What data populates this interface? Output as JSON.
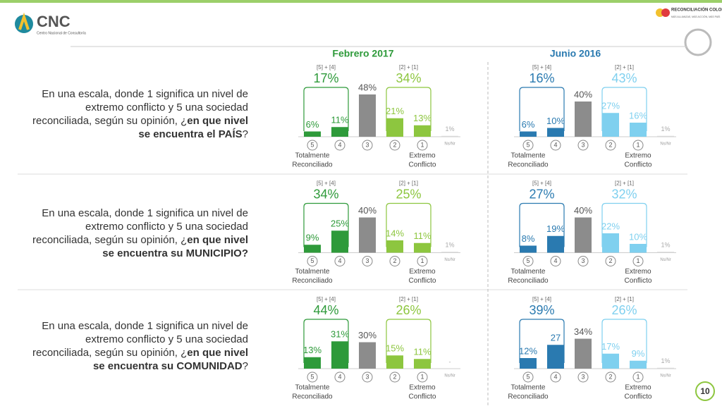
{
  "logo": {
    "name": "CNC",
    "subtitle": "Centro Nacional de Consultoría"
  },
  "partner": {
    "name": "RECONCILIACIÓN COLOMBIA",
    "tagline": "MÁS ALLIANZAS, MÁS ACCIÓN, MÁS PAÍS"
  },
  "headers": [
    "Febrero 2017",
    "Junio 2016"
  ],
  "questions": [
    [
      {
        "text": "En una escala, donde 1 significa un nivel de extremo conflicto y 5 una sociedad reconciliada, según su opinión, ¿"
      },
      {
        "text": "en que nivel se encuentra el PAÍS",
        "bold": true
      },
      {
        "text": "?"
      }
    ],
    [
      {
        "text": "En una escala, donde 1 significa un nivel de extremo conflicto y 5 una sociedad reconciliada, según su opinión, ¿"
      },
      {
        "text": "en que nivel se encuentra su MUNICIPIO?",
        "bold": true
      }
    ],
    [
      {
        "text": "En una escala, donde 1 significa un nivel de extremo conflicto y 5 una sociedad reconciliada, según su opinión, ¿"
      },
      {
        "text": "en que nivel se encuentra su COMUNIDAD",
        "bold": true
      },
      {
        "text": "?"
      }
    ]
  ],
  "page_number": "10",
  "chart_data": [
    {
      "type": "bar",
      "categories": [
        "5",
        "4",
        "3",
        "2",
        "1",
        "Ns/Nr"
      ],
      "values": [
        6,
        11,
        48,
        21,
        13,
        1
      ],
      "value_labels": [
        "6%",
        "11%",
        "48%",
        "21%",
        "13%",
        "1%"
      ],
      "colors": [
        "#2e9a3a",
        "#2e9a3a",
        "#8c8c8c",
        "#8dc63f",
        "#8dc63f",
        "#d9d9d9"
      ],
      "groups": [
        {
          "label": "[5] + [4]",
          "value": 17,
          "value_label": "17%",
          "color": "#2e9a3a"
        },
        {
          "label": "[2] + [1]",
          "value": 34,
          "value_label": "34%",
          "color": "#8dc63f"
        }
      ],
      "left_caption": [
        "Totalmente",
        "Reconciliado"
      ],
      "right_caption": [
        "Extremo",
        "Conflicto"
      ]
    },
    {
      "type": "bar",
      "categories": [
        "5",
        "4",
        "3",
        "2",
        "1",
        "Ns/Nr"
      ],
      "values": [
        6,
        10,
        40,
        27,
        16,
        1
      ],
      "value_labels": [
        "6%",
        "10%",
        "40%",
        "27%",
        "16%",
        "1%"
      ],
      "colors": [
        "#2a7ab0",
        "#2a7ab0",
        "#8c8c8c",
        "#7fd0ef",
        "#7fd0ef",
        "#d9d9d9"
      ],
      "groups": [
        {
          "label": "[5] + [4]",
          "value": 16,
          "value_label": "16%",
          "color": "#2a7ab0"
        },
        {
          "label": "[2] + [1]",
          "value": 43,
          "value_label": "43%",
          "color": "#7fd0ef"
        }
      ],
      "left_caption": [
        "Totalmente",
        "Reconciliado"
      ],
      "right_caption": [
        "Extremo",
        "Conflicto"
      ]
    },
    {
      "type": "bar",
      "categories": [
        "5",
        "4",
        "3",
        "2",
        "1",
        "Ns/Nr"
      ],
      "values": [
        9,
        25,
        40,
        14,
        11,
        1
      ],
      "value_labels": [
        "9%",
        "25%",
        "40%",
        "14%",
        "11%",
        "1%"
      ],
      "colors": [
        "#2e9a3a",
        "#2e9a3a",
        "#8c8c8c",
        "#8dc63f",
        "#8dc63f",
        "#d9d9d9"
      ],
      "groups": [
        {
          "label": "[5] + [4]",
          "value": 34,
          "value_label": "34%",
          "color": "#2e9a3a"
        },
        {
          "label": "[2] + [1]",
          "value": 25,
          "value_label": "25%",
          "color": "#8dc63f"
        }
      ],
      "left_caption": [
        "Totalmente",
        "Reconciliado"
      ],
      "right_caption": [
        "Extremo",
        "Conflicto"
      ]
    },
    {
      "type": "bar",
      "categories": [
        "5",
        "4",
        "3",
        "2",
        "1",
        "Ns/Nr"
      ],
      "values": [
        8,
        19,
        40,
        22,
        10,
        1
      ],
      "value_labels": [
        "8%",
        "19%",
        "40%",
        "22%",
        "10%",
        "1%"
      ],
      "colors": [
        "#2a7ab0",
        "#2a7ab0",
        "#8c8c8c",
        "#7fd0ef",
        "#7fd0ef",
        "#d9d9d9"
      ],
      "groups": [
        {
          "label": "[5] + [4]",
          "value": 27,
          "value_label": "27%",
          "color": "#2a7ab0"
        },
        {
          "label": "[2] + [1]",
          "value": 32,
          "value_label": "32%",
          "color": "#7fd0ef"
        }
      ],
      "left_caption": [
        "Totalmente",
        "Reconciliado"
      ],
      "right_caption": [
        "Extremo",
        "Conflicto"
      ]
    },
    {
      "type": "bar",
      "categories": [
        "5",
        "4",
        "3",
        "2",
        "1",
        "Ns/Nr"
      ],
      "values": [
        13,
        31,
        30,
        15,
        11,
        null
      ],
      "value_labels": [
        "13%",
        "31%",
        "30%",
        "15%",
        "11%",
        "-"
      ],
      "colors": [
        "#2e9a3a",
        "#2e9a3a",
        "#8c8c8c",
        "#8dc63f",
        "#8dc63f",
        "#d9d9d9"
      ],
      "groups": [
        {
          "label": "[5] + [4]",
          "value": 44,
          "value_label": "44%",
          "color": "#2e9a3a"
        },
        {
          "label": "[2] + [1]",
          "value": 26,
          "value_label": "26%",
          "color": "#8dc63f"
        }
      ],
      "left_caption": [
        "Totalmente",
        "Reconciliado"
      ],
      "right_caption": [
        "Extremo",
        "Conflicto"
      ]
    },
    {
      "type": "bar",
      "categories": [
        "5",
        "4",
        "3",
        "2",
        "1",
        "Ns/Nr"
      ],
      "values": [
        12,
        27,
        34,
        17,
        9,
        1
      ],
      "value_labels": [
        "12%",
        "27",
        "34%",
        "17%",
        "9%",
        "1%"
      ],
      "colors": [
        "#2a7ab0",
        "#2a7ab0",
        "#8c8c8c",
        "#7fd0ef",
        "#7fd0ef",
        "#d9d9d9"
      ],
      "groups": [
        {
          "label": "[5] + [4]",
          "value": 39,
          "value_label": "39%",
          "color": "#2a7ab0"
        },
        {
          "label": "[2] + [1]",
          "value": 26,
          "value_label": "26%",
          "color": "#7fd0ef"
        }
      ],
      "left_caption": [
        "Totalmente",
        "Reconciliado"
      ],
      "right_caption": [
        "Extremo",
        "Conflicto"
      ]
    }
  ]
}
